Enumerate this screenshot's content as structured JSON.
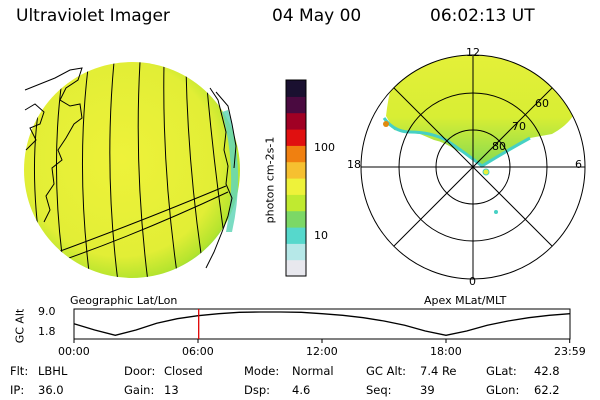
{
  "header": {
    "title": "Ultraviolet Imager",
    "date": "04 May 00",
    "time": "06:02:13 UT"
  },
  "colorbar": {
    "label": "photon cm-2s-1",
    "ticks": [
      "100",
      "10"
    ],
    "colors": [
      "#e8e8ee",
      "#b6e8e8",
      "#56d8cc",
      "#7cd866",
      "#c0ea30",
      "#eef23a",
      "#f6c030",
      "#f08010",
      "#e01010",
      "#a00024",
      "#4a0a40",
      "#1a1030"
    ]
  },
  "panels": {
    "left_label": "Geographic Lat/Lon",
    "right_label": "Apex MLat/MLT"
  },
  "polar": {
    "mlt_labels": {
      "top": "12",
      "left": "18",
      "right": "6",
      "bottom": "0"
    },
    "lat_labels": [
      "60",
      "70",
      "80"
    ]
  },
  "chart_data": {
    "type": "line",
    "ylabel": "GC Alt",
    "y_ticks": [
      "9.0",
      "1.8"
    ],
    "x_ticks": [
      "00:00",
      "06:00",
      "12:00",
      "18:00",
      "23:59"
    ],
    "marker_time": "06:02",
    "ylim": [
      1.8,
      9.0
    ],
    "series": [
      {
        "x": [
          0,
          1,
          2,
          3,
          4,
          5,
          6,
          7,
          8,
          9,
          10,
          11,
          12,
          13,
          14,
          15,
          16,
          17,
          18,
          19,
          20,
          21,
          22,
          23,
          24
        ],
        "y": [
          5.5,
          3.6,
          2.0,
          3.6,
          5.6,
          7.0,
          7.9,
          8.5,
          8.9,
          9.0,
          9.0,
          8.9,
          8.5,
          8.0,
          7.3,
          6.3,
          5.0,
          3.3,
          2.0,
          3.3,
          5.0,
          6.3,
          7.3,
          8.0,
          8.5
        ]
      }
    ]
  },
  "footer": {
    "rows": [
      [
        {
          "label": "Flt:",
          "value": "LBHL"
        },
        {
          "label": "Door:",
          "value": "Closed"
        },
        {
          "label": "Mode:",
          "value": "Normal"
        },
        {
          "label": "GC Alt:",
          "value": "7.4 Re"
        },
        {
          "label": "GLat:",
          "value": "42.8"
        }
      ],
      [
        {
          "label": "IP:",
          "value": "36.0"
        },
        {
          "label": "Gain:",
          "value": "13"
        },
        {
          "label": "Dsp:",
          "value": "4.6"
        },
        {
          "label": "Seq:",
          "value": "39"
        },
        {
          "label": "GLon:",
          "value": "62.2"
        }
      ]
    ]
  }
}
